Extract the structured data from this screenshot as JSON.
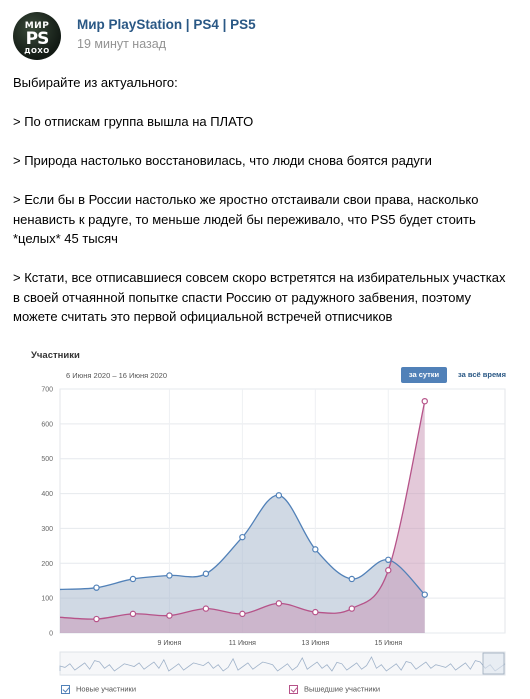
{
  "post": {
    "avatar_text": [
      "МИР",
      "PS",
      "ДОХО"
    ],
    "group_name": "Мир PlayStation | PS4 | PS5",
    "time": "19 минут назад",
    "lines": [
      "Выбирайте из актуального:",
      "",
      "> По отпискам группа вышла на ПЛАТО",
      "",
      "> Природа настолько восстановилась, что люди снова боятся радуги",
      "",
      "> Если бы в России настолько же яростно отстаивали свои права, насколько",
      "ненависть к радуге, то меньше людей бы переживало, что PS5 будет стоить",
      "*целых* 45 тысяч",
      "",
      "> Кстати, все отписавшиеся совсем скоро встретятся на избирательных участках",
      "в своей отчаянной попытке спасти Россию от радужного забвения, поэтому",
      "можете считать это первой официальной встречей отписчиков"
    ]
  },
  "chart_header": {
    "title": "Участники",
    "range": "6 Июня 2020 – 16 Июня 2020",
    "btn_day": "за сутки",
    "btn_all": "за всё время"
  },
  "chart_data": {
    "type": "area",
    "title": "Участники",
    "x_ticks": [
      "9 Июня",
      "11 Июня",
      "13 Июня",
      "15 Июня"
    ],
    "x_tick_positions": [
      3,
      5,
      7,
      9
    ],
    "ylim": [
      0,
      700
    ],
    "y_ticks": [
      0,
      100,
      200,
      300,
      400,
      500,
      600,
      700
    ],
    "grid": true,
    "legend_position": "bottom",
    "colors": {
      "new": "#5181b8",
      "left": "#b65389"
    },
    "series": [
      {
        "name": "Новые участники",
        "x": [
          0,
          1,
          2,
          3,
          4,
          5,
          6,
          7,
          8,
          9,
          10,
          11,
          12
        ],
        "values": [
          125,
          130,
          155,
          165,
          170,
          275,
          395,
          240,
          155,
          210,
          110,
          null,
          null
        ]
      },
      {
        "name": "Вышедшие участники",
        "x": [
          0,
          1,
          2,
          3,
          4,
          5,
          6,
          7,
          8,
          9,
          10,
          11
        ],
        "values": [
          45,
          40,
          55,
          50,
          70,
          55,
          85,
          60,
          70,
          180,
          665,
          null
        ]
      }
    ]
  }
}
